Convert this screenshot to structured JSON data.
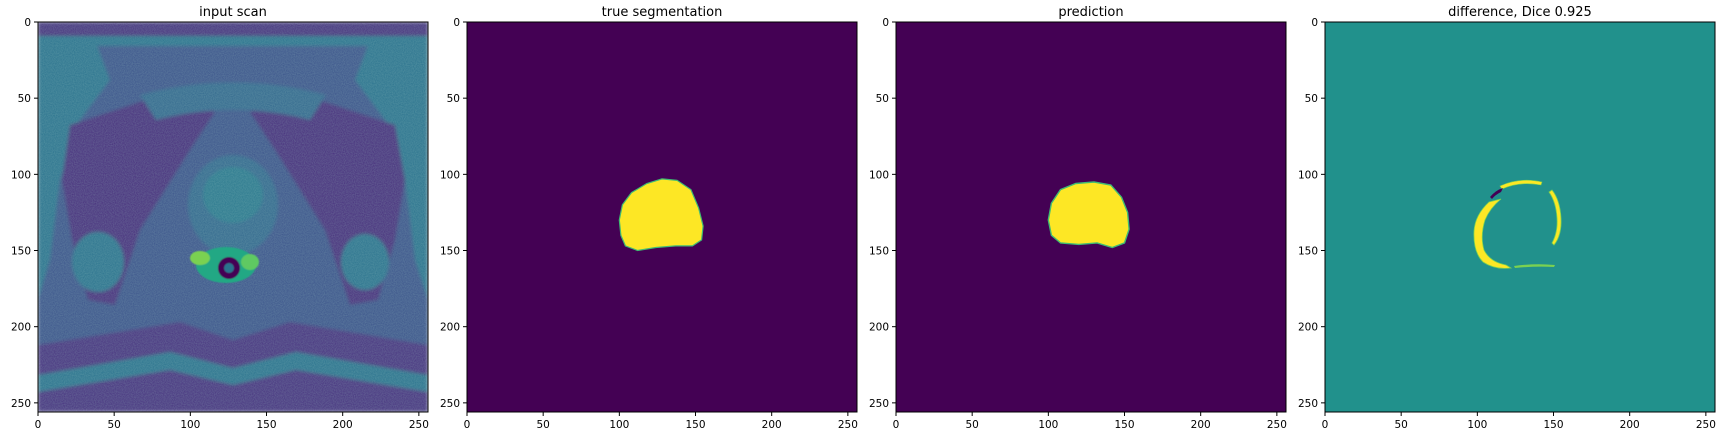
{
  "figure": {
    "background": "#ffffff",
    "panel_count": 4
  },
  "chart_data": [
    {
      "type": "heatmap",
      "title": "input scan",
      "content": "MRI pelvis axial slice (prostate)",
      "xlim": [
        0,
        256
      ],
      "ylim": [
        256,
        0
      ],
      "xticks": [
        0,
        50,
        100,
        150,
        200,
        250
      ],
      "yticks": [
        0,
        50,
        100,
        150,
        200,
        250
      ],
      "colormap": "viridis",
      "colors": {
        "background": "#3b528b",
        "dark": "#440154",
        "mid": "#21918c",
        "bright": "#5ec962",
        "max": "#fde725"
      }
    },
    {
      "type": "heatmap",
      "title": "true segmentation",
      "content": "binary mask",
      "xlim": [
        0,
        256
      ],
      "ylim": [
        256,
        0
      ],
      "xticks": [
        0,
        50,
        100,
        150,
        200,
        250
      ],
      "yticks": [
        0,
        50,
        100,
        150,
        200,
        250
      ],
      "colormap": "viridis",
      "colors": {
        "background": "#440154",
        "mask": "#fde725",
        "edge": "#3fbc73"
      },
      "mask_outline": [
        [
          138,
          104
        ],
        [
          128,
          103
        ],
        [
          118,
          106
        ],
        [
          108,
          112
        ],
        [
          102,
          120
        ],
        [
          100,
          130
        ],
        [
          101,
          140
        ],
        [
          104,
          147
        ],
        [
          112,
          150
        ],
        [
          124,
          148
        ],
        [
          137,
          147
        ],
        [
          148,
          147
        ],
        [
          154,
          143
        ],
        [
          155,
          134
        ],
        [
          152,
          122
        ],
        [
          147,
          110
        ]
      ]
    },
    {
      "type": "heatmap",
      "title": "prediction",
      "content": "binary mask",
      "xlim": [
        0,
        256
      ],
      "ylim": [
        256,
        0
      ],
      "xticks": [
        0,
        50,
        100,
        150,
        200,
        250
      ],
      "yticks": [
        0,
        50,
        100,
        150,
        200,
        250
      ],
      "colormap": "viridis",
      "colors": {
        "background": "#440154",
        "mask": "#fde725",
        "edge": "#3fbc73"
      },
      "mask_outline": [
        [
          130,
          105
        ],
        [
          118,
          106
        ],
        [
          108,
          110
        ],
        [
          102,
          119
        ],
        [
          100,
          130
        ],
        [
          102,
          140
        ],
        [
          108,
          145
        ],
        [
          120,
          146
        ],
        [
          132,
          145
        ],
        [
          142,
          148
        ],
        [
          150,
          145
        ],
        [
          153,
          136
        ],
        [
          152,
          125
        ],
        [
          148,
          115
        ],
        [
          141,
          107
        ]
      ]
    },
    {
      "type": "heatmap",
      "title": "difference, Dice 0.925",
      "dice": 0.925,
      "content": "true segmentation minus prediction",
      "xlim": [
        0,
        256
      ],
      "ylim": [
        256,
        0
      ],
      "xticks": [
        0,
        50,
        100,
        150,
        200,
        250
      ],
      "yticks": [
        0,
        50,
        100,
        150,
        200,
        250
      ],
      "colormap": "viridis",
      "colors": {
        "background": "#21918c",
        "positive": "#fde725",
        "negative": "#440154",
        "edge": "#5ec962"
      }
    }
  ]
}
